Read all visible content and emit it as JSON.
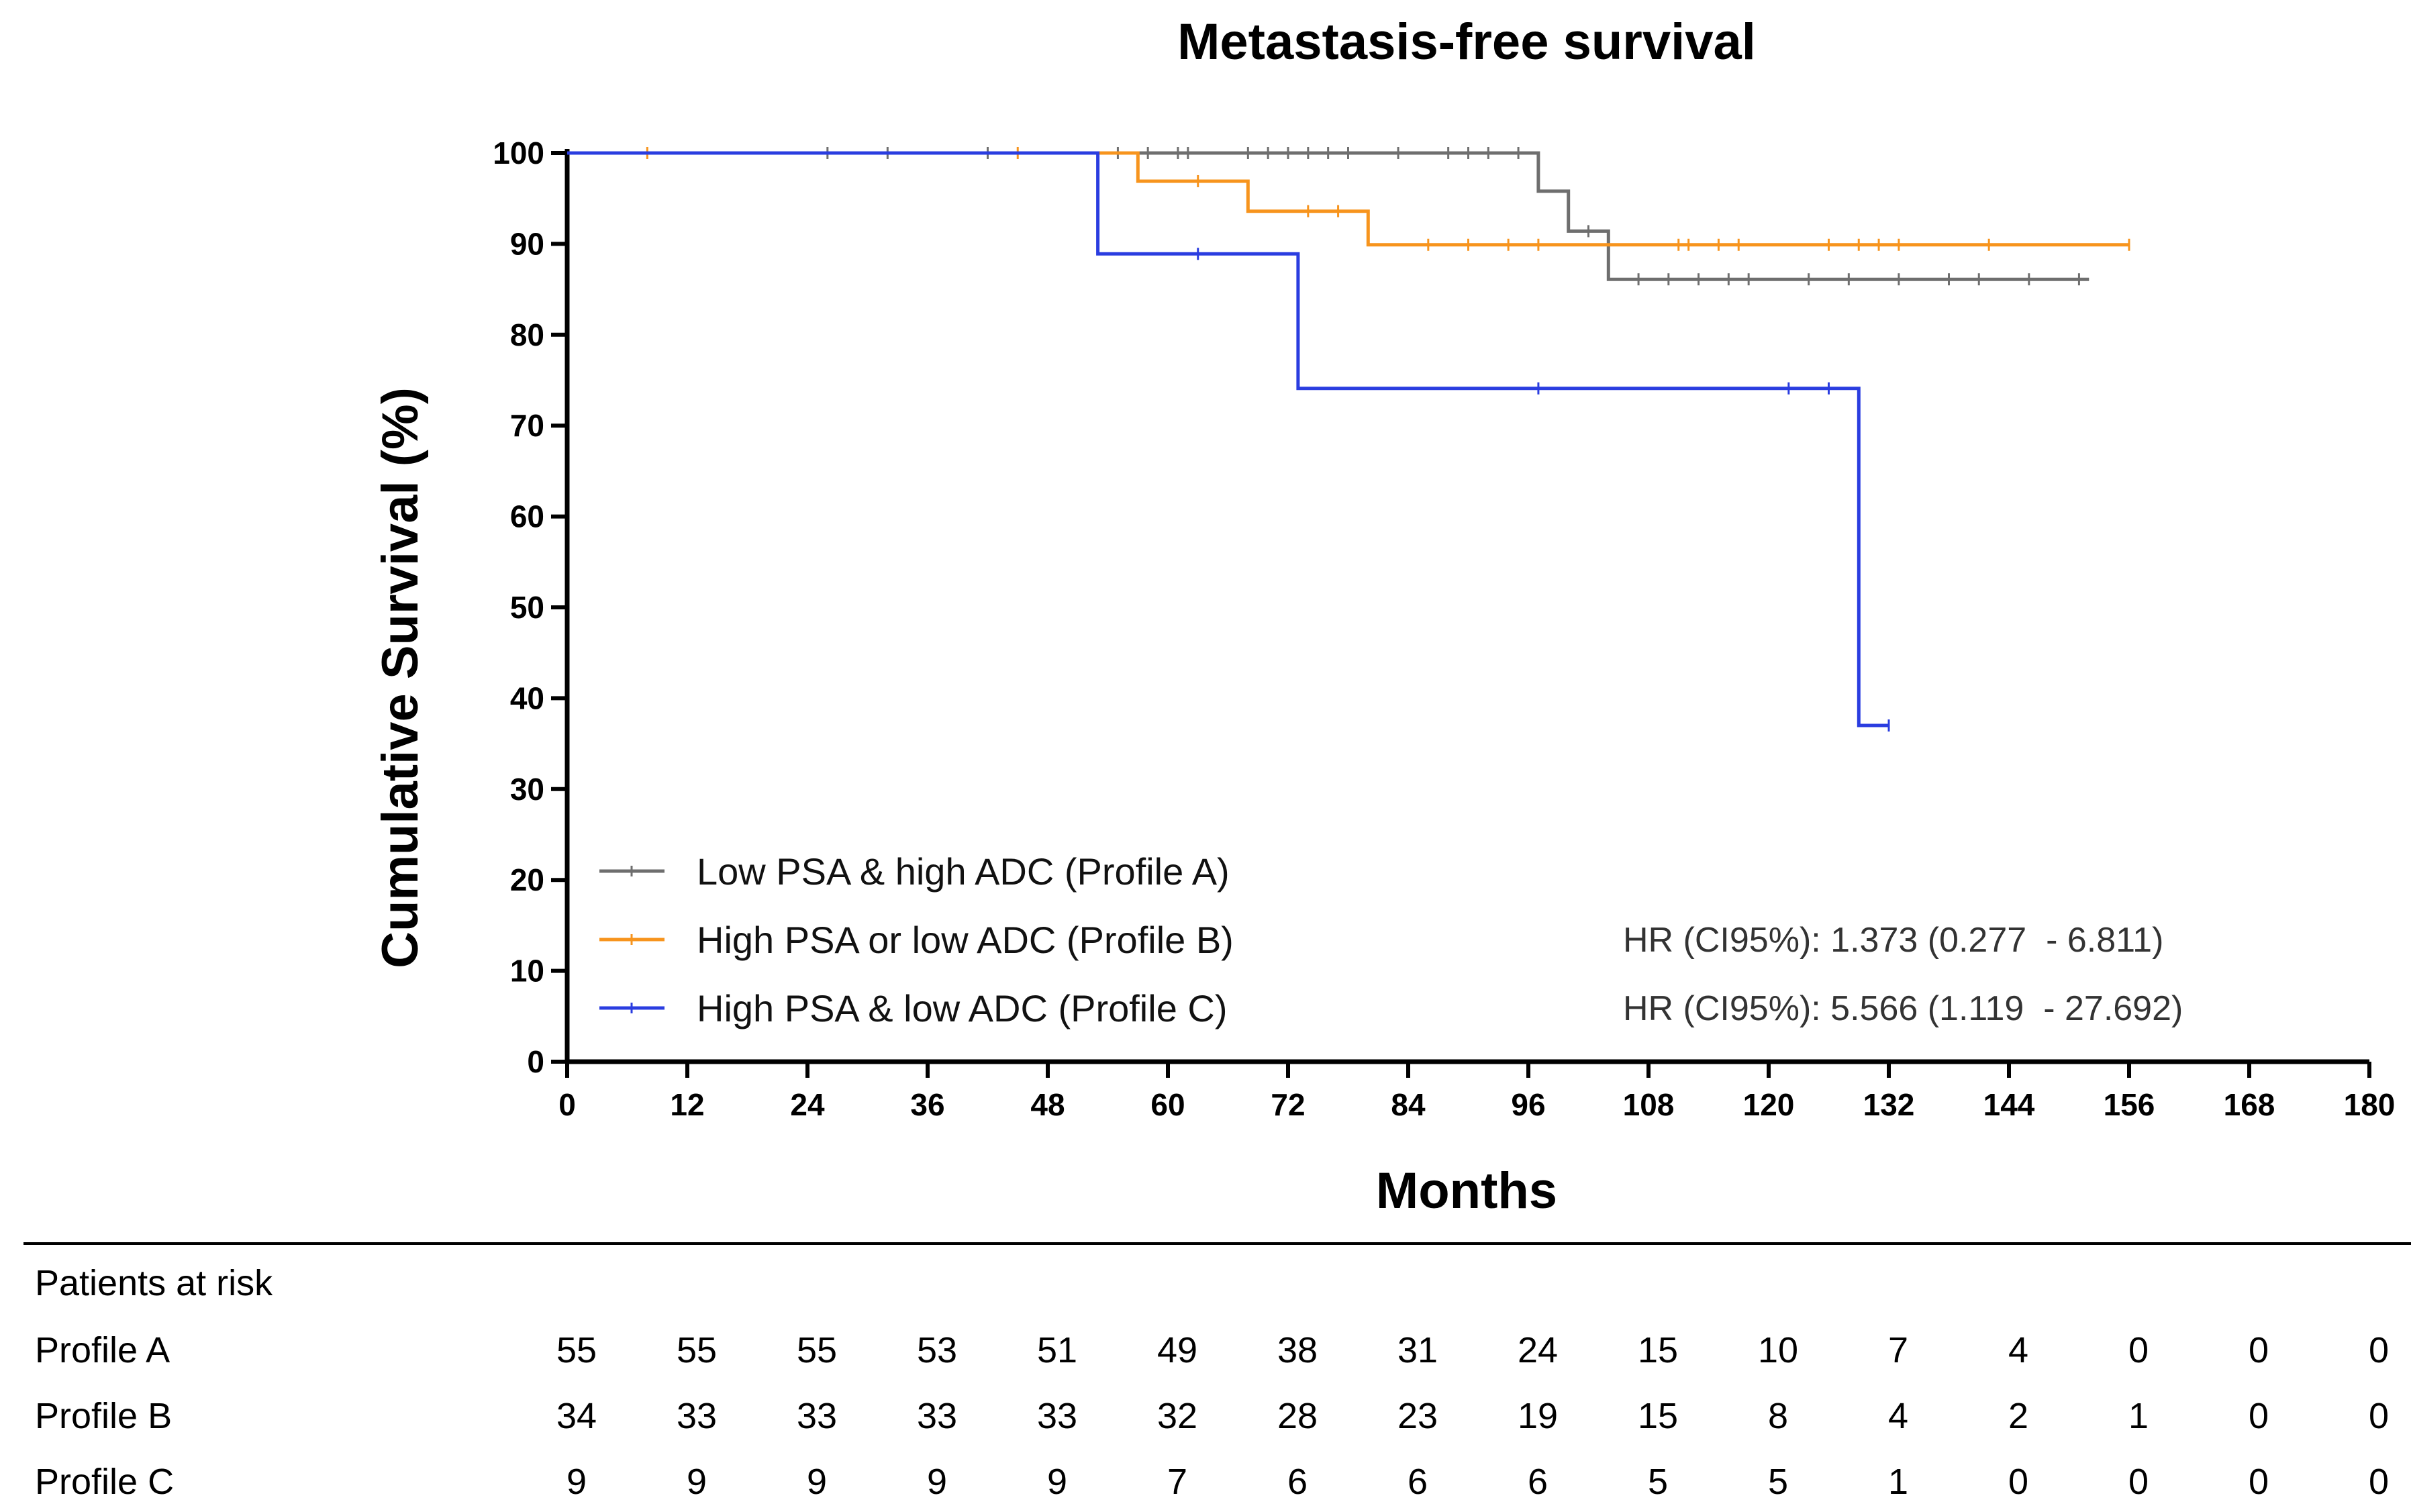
{
  "chart_data": {
    "type": "line",
    "subtype": "kaplan-meier",
    "title": "Metastasis-free survival",
    "xlabel": "Months",
    "ylabel": "Cumulative Survival (%)",
    "xlim": [
      0,
      180
    ],
    "ylim": [
      0,
      100
    ],
    "xticks": [
      0,
      12,
      24,
      36,
      48,
      60,
      72,
      84,
      96,
      108,
      120,
      132,
      144,
      156,
      168,
      180
    ],
    "yticks": [
      0,
      10,
      20,
      30,
      40,
      50,
      60,
      70,
      80,
      90,
      100
    ],
    "legend_position": "bottom-left",
    "series": [
      {
        "name": "Low PSA & high ADC (Profile A)",
        "color": "#6e6e6e",
        "steps": [
          [
            0,
            100
          ],
          [
            97,
            100
          ],
          [
            97,
            95.8
          ],
          [
            100,
            95.8
          ],
          [
            100,
            91.4
          ],
          [
            104,
            91.4
          ],
          [
            104,
            86.1
          ],
          [
            152,
            86.1
          ]
        ],
        "censors": [
          [
            26,
            100
          ],
          [
            32,
            100
          ],
          [
            42,
            100
          ],
          [
            55,
            100
          ],
          [
            58,
            100
          ],
          [
            61,
            100
          ],
          [
            62,
            100
          ],
          [
            68,
            100
          ],
          [
            70,
            100
          ],
          [
            72,
            100
          ],
          [
            74,
            100
          ],
          [
            76,
            100
          ],
          [
            78,
            100
          ],
          [
            83,
            100
          ],
          [
            88,
            100
          ],
          [
            90,
            100
          ],
          [
            92,
            100
          ],
          [
            95,
            100
          ],
          [
            102,
            91.4
          ],
          [
            107,
            86.1
          ],
          [
            110,
            86.1
          ],
          [
            113,
            86.1
          ],
          [
            116,
            86.1
          ],
          [
            118,
            86.1
          ],
          [
            124,
            86.1
          ],
          [
            128,
            86.1
          ],
          [
            133,
            86.1
          ],
          [
            138,
            86.1
          ],
          [
            141,
            86.1
          ],
          [
            146,
            86.1
          ],
          [
            151,
            86.1
          ]
        ]
      },
      {
        "name": "High PSA or low ADC (Profile B)",
        "color": "#f7941d",
        "steps": [
          [
            0,
            100
          ],
          [
            57,
            100
          ],
          [
            57,
            96.9
          ],
          [
            68,
            96.9
          ],
          [
            68,
            93.6
          ],
          [
            80,
            93.6
          ],
          [
            80,
            89.9
          ],
          [
            156,
            89.9
          ]
        ],
        "censors": [
          [
            8,
            100
          ],
          [
            45,
            100
          ],
          [
            63,
            96.9
          ],
          [
            74,
            93.6
          ],
          [
            77,
            93.6
          ],
          [
            86,
            89.9
          ],
          [
            90,
            89.9
          ],
          [
            94,
            89.9
          ],
          [
            97,
            89.9
          ],
          [
            111,
            89.9
          ],
          [
            112,
            89.9
          ],
          [
            115,
            89.9
          ],
          [
            117,
            89.9
          ],
          [
            126,
            89.9
          ],
          [
            129,
            89.9
          ],
          [
            131,
            89.9
          ],
          [
            133,
            89.9
          ],
          [
            142,
            89.9
          ],
          [
            156,
            89.9
          ]
        ]
      },
      {
        "name": "High PSA & low ADC (Profile C)",
        "color": "#2a3de0",
        "steps": [
          [
            0,
            100
          ],
          [
            53,
            100
          ],
          [
            53,
            88.9
          ],
          [
            73,
            88.9
          ],
          [
            73,
            74.1
          ],
          [
            129,
            74.1
          ],
          [
            129,
            37
          ],
          [
            132,
            37
          ]
        ],
        "censors": [
          [
            63,
            88.9
          ],
          [
            97,
            74.1
          ],
          [
            122,
            74.1
          ],
          [
            126,
            74.1
          ],
          [
            132,
            37
          ]
        ]
      }
    ],
    "annotations": [
      "HR (CI95%): 1.373 (0.277  - 6.811)",
      "HR (CI95%): 5.566 (1.119  - 27.692)"
    ],
    "risk_table": {
      "title": "Patients at risk",
      "rows": [
        {
          "label": "Profile A",
          "values": [
            55,
            55,
            55,
            53,
            51,
            49,
            38,
            31,
            24,
            15,
            10,
            7,
            4,
            0,
            0,
            0
          ]
        },
        {
          "label": "Profile B",
          "values": [
            34,
            33,
            33,
            33,
            33,
            32,
            28,
            23,
            19,
            15,
            8,
            4,
            2,
            1,
            0,
            0
          ]
        },
        {
          "label": "Profile C",
          "values": [
            9,
            9,
            9,
            9,
            9,
            7,
            6,
            6,
            6,
            5,
            5,
            1,
            0,
            0,
            0,
            0
          ]
        }
      ]
    }
  }
}
